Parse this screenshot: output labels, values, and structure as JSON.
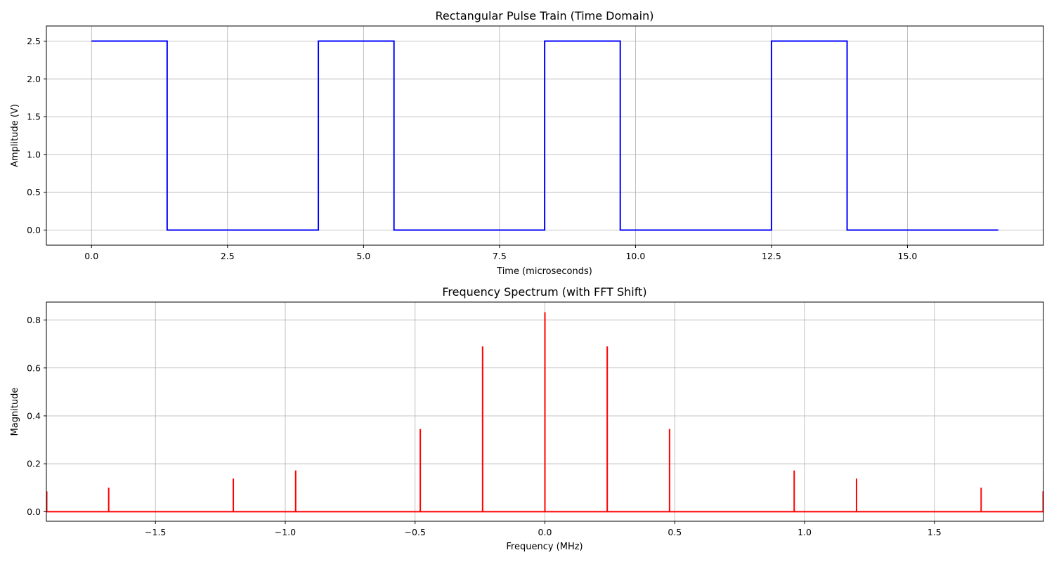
{
  "chart_data": [
    {
      "type": "line",
      "title": "Rectangular Pulse Train (Time Domain)",
      "xlabel": "Time (microseconds)",
      "ylabel": "Amplitude (V)",
      "xlim": [
        -0.83,
        17.5
      ],
      "ylim": [
        -0.2,
        2.7
      ],
      "xticks": [
        0.0,
        2.5,
        5.0,
        7.5,
        10.0,
        12.5,
        15.0
      ],
      "yticks": [
        0.0,
        0.5,
        1.0,
        1.5,
        2.0,
        2.5
      ],
      "xtick_labels": [
        "0.0",
        "2.5",
        "5.0",
        "7.5",
        "10.0",
        "12.5",
        "15.0"
      ],
      "ytick_labels": [
        "0.0",
        "0.5",
        "1.0",
        "1.5",
        "2.0",
        "2.5"
      ],
      "grid": true,
      "color": "#0000ff",
      "series": [
        {
          "x": [
            0.0,
            1.39,
            1.39,
            4.17,
            4.17,
            5.56,
            5.56,
            8.33,
            8.33,
            9.72,
            9.72,
            12.5,
            12.5,
            13.89,
            13.89,
            16.67
          ],
          "y": [
            2.5,
            2.5,
            0.0,
            0.0,
            2.5,
            2.5,
            0.0,
            0.0,
            2.5,
            2.5,
            0.0,
            0.0,
            2.5,
            2.5,
            0.0,
            0.0
          ]
        }
      ]
    },
    {
      "type": "line",
      "title": "Frequency Spectrum (with FFT Shift)",
      "xlabel": "Frequency (MHz)",
      "ylabel": "Magnitude",
      "xlim": [
        -1.92,
        1.92
      ],
      "ylim": [
        -0.04,
        0.875
      ],
      "xticks": [
        -1.5,
        -1.0,
        -0.5,
        0.0,
        0.5,
        1.0,
        1.5
      ],
      "yticks": [
        0.0,
        0.2,
        0.4,
        0.6,
        0.8
      ],
      "xtick_labels": [
        "−1.5",
        "−1.0",
        "−0.5",
        "0.0",
        "0.5",
        "1.0",
        "1.5"
      ],
      "ytick_labels": [
        "0.0",
        "0.2",
        "0.4",
        "0.6",
        "0.8"
      ],
      "grid": true,
      "color": "#ff0000",
      "spikes": {
        "x": [
          -1.92,
          -1.68,
          -1.2,
          -0.96,
          -0.48,
          -0.24,
          0.0,
          0.24,
          0.48,
          0.96,
          1.2,
          1.68,
          1.92
        ],
        "y": [
          0.085,
          0.1,
          0.138,
          0.172,
          0.345,
          0.69,
          0.833,
          0.69,
          0.345,
          0.172,
          0.138,
          0.1,
          0.085
        ]
      }
    }
  ]
}
